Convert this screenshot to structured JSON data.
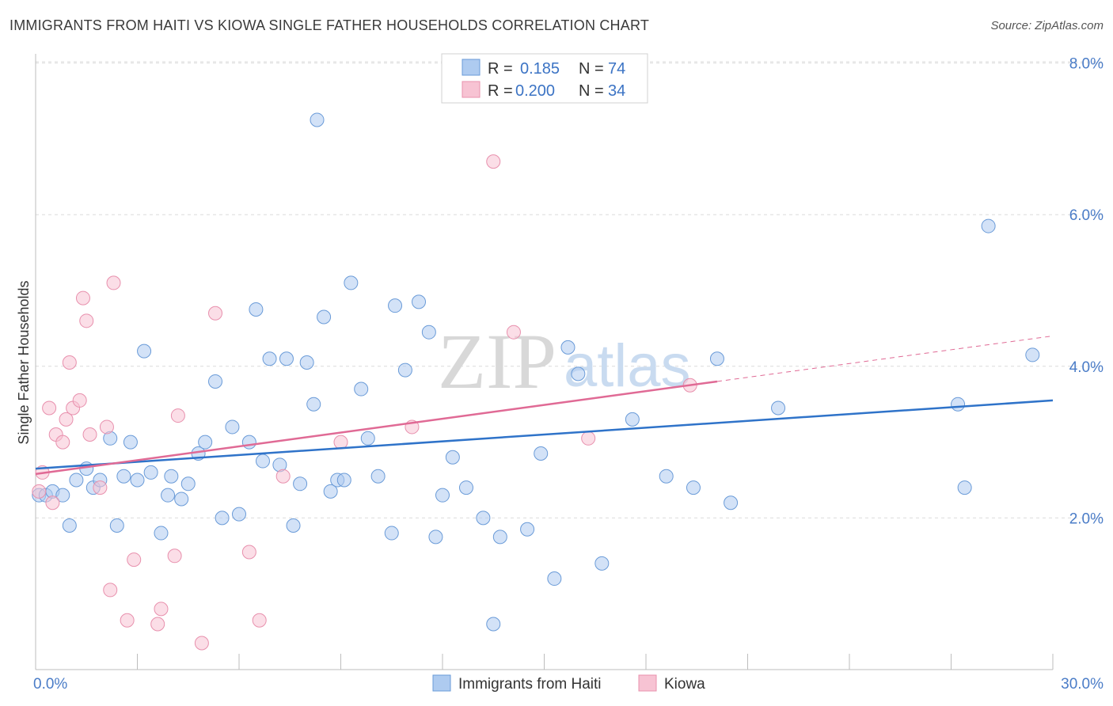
{
  "title": "IMMIGRANTS FROM HAITI VS KIOWA SINGLE FATHER HOUSEHOLDS CORRELATION CHART",
  "source": "Source: ZipAtlas.com",
  "watermark": {
    "zip": "ZIP",
    "atlas": "atlas"
  },
  "colors": {
    "blue_fill": "#aecbf0",
    "blue_stroke": "#6a9bd8",
    "blue_line": "#2f73c9",
    "pink_fill": "#f7c3d3",
    "pink_stroke": "#e890ad",
    "pink_line": "#e06a95",
    "grid": "#dcdcdc",
    "axis_text": "#4a7cc7"
  },
  "legend": {
    "rows": [
      {
        "r_label": "R =",
        "r_value": "0.185",
        "n_label": "N =",
        "n_value": "74",
        "series": "blue"
      },
      {
        "r_label": "R =",
        "r_value": "0.200",
        "n_label": "N =",
        "n_value": "34",
        "series": "pink"
      }
    ]
  },
  "chart_data": {
    "type": "scatter",
    "title": "IMMIGRANTS FROM HAITI VS KIOWA SINGLE FATHER HOUSEHOLDS CORRELATION CHART",
    "xlabel": "",
    "ylabel": "Single Father Households",
    "xlim": [
      0,
      30
    ],
    "ylim": [
      0,
      8.3
    ],
    "x_tick_labels": [
      "0.0%",
      "30.0%"
    ],
    "y_ticks": [
      2,
      4,
      6,
      8
    ],
    "y_tick_labels": [
      "2.0%",
      "4.0%",
      "6.0%",
      "8.0%"
    ],
    "grid": true,
    "series": [
      {
        "name": "Immigrants from Haiti",
        "color": "blue",
        "trend": {
          "x": [
            0,
            30
          ],
          "y": [
            2.65,
            3.55
          ],
          "dashed_to": null
        },
        "points": [
          [
            0.1,
            2.3
          ],
          [
            0.3,
            2.3
          ],
          [
            0.5,
            2.35
          ],
          [
            0.8,
            2.3
          ],
          [
            1.0,
            1.9
          ],
          [
            1.2,
            2.5
          ],
          [
            1.5,
            2.65
          ],
          [
            1.7,
            2.4
          ],
          [
            1.9,
            2.5
          ],
          [
            2.2,
            3.05
          ],
          [
            2.4,
            1.9
          ],
          [
            2.6,
            2.55
          ],
          [
            2.8,
            3.0
          ],
          [
            3.0,
            2.5
          ],
          [
            3.2,
            4.2
          ],
          [
            3.4,
            2.6
          ],
          [
            3.7,
            1.8
          ],
          [
            3.9,
            2.3
          ],
          [
            4.0,
            2.55
          ],
          [
            4.3,
            2.25
          ],
          [
            4.5,
            2.45
          ],
          [
            4.8,
            2.85
          ],
          [
            5.0,
            3.0
          ],
          [
            5.3,
            3.8
          ],
          [
            5.5,
            2.0
          ],
          [
            5.8,
            3.2
          ],
          [
            6.0,
            2.05
          ],
          [
            6.3,
            3.0
          ],
          [
            6.5,
            4.75
          ],
          [
            6.7,
            2.75
          ],
          [
            6.9,
            4.1
          ],
          [
            7.2,
            2.7
          ],
          [
            7.4,
            4.1
          ],
          [
            7.6,
            1.9
          ],
          [
            7.8,
            2.45
          ],
          [
            8.0,
            4.05
          ],
          [
            8.2,
            3.5
          ],
          [
            8.3,
            7.25
          ],
          [
            8.5,
            4.65
          ],
          [
            8.7,
            2.35
          ],
          [
            8.9,
            2.5
          ],
          [
            9.1,
            2.5
          ],
          [
            9.3,
            5.1
          ],
          [
            9.6,
            3.7
          ],
          [
            9.8,
            3.05
          ],
          [
            10.1,
            2.55
          ],
          [
            10.5,
            1.8
          ],
          [
            10.6,
            4.8
          ],
          [
            10.9,
            3.95
          ],
          [
            11.3,
            4.85
          ],
          [
            11.6,
            4.45
          ],
          [
            11.8,
            1.75
          ],
          [
            12.0,
            2.3
          ],
          [
            12.3,
            2.8
          ],
          [
            12.7,
            2.4
          ],
          [
            13.2,
            2.0
          ],
          [
            13.5,
            0.6
          ],
          [
            13.7,
            1.75
          ],
          [
            14.5,
            1.85
          ],
          [
            14.9,
            2.85
          ],
          [
            15.3,
            1.2
          ],
          [
            15.7,
            4.25
          ],
          [
            16.0,
            3.9
          ],
          [
            16.7,
            1.4
          ],
          [
            17.6,
            3.3
          ],
          [
            18.6,
            2.55
          ],
          [
            19.4,
            2.4
          ],
          [
            20.1,
            4.1
          ],
          [
            20.5,
            2.2
          ],
          [
            21.9,
            3.45
          ],
          [
            27.2,
            3.5
          ],
          [
            27.4,
            2.4
          ],
          [
            28.1,
            5.85
          ],
          [
            29.4,
            4.15
          ]
        ]
      },
      {
        "name": "Kiowa",
        "color": "pink",
        "trend": {
          "x": [
            0,
            20.1
          ],
          "y": [
            2.58,
            3.8
          ],
          "dashed_to": {
            "x": 30,
            "y": 4.4
          }
        },
        "points": [
          [
            0.1,
            2.35
          ],
          [
            0.2,
            2.6
          ],
          [
            0.4,
            3.45
          ],
          [
            0.5,
            2.2
          ],
          [
            0.6,
            3.1
          ],
          [
            0.8,
            3.0
          ],
          [
            0.9,
            3.3
          ],
          [
            1.0,
            4.05
          ],
          [
            1.1,
            3.45
          ],
          [
            1.3,
            3.55
          ],
          [
            1.4,
            4.9
          ],
          [
            1.5,
            4.6
          ],
          [
            1.6,
            3.1
          ],
          [
            1.9,
            2.4
          ],
          [
            2.1,
            3.2
          ],
          [
            2.2,
            1.05
          ],
          [
            2.3,
            5.1
          ],
          [
            2.7,
            0.65
          ],
          [
            2.9,
            1.45
          ],
          [
            3.6,
            0.6
          ],
          [
            3.7,
            0.8
          ],
          [
            4.1,
            1.5
          ],
          [
            4.2,
            3.35
          ],
          [
            4.9,
            0.35
          ],
          [
            5.3,
            4.7
          ],
          [
            6.3,
            1.55
          ],
          [
            6.6,
            0.65
          ],
          [
            7.3,
            2.55
          ],
          [
            9.0,
            3.0
          ],
          [
            11.1,
            3.2
          ],
          [
            13.5,
            6.7
          ],
          [
            14.1,
            4.45
          ],
          [
            16.3,
            3.05
          ],
          [
            19.3,
            3.75
          ]
        ]
      }
    ],
    "legend_entries": [
      "Immigrants from Haiti",
      "Kiowa"
    ]
  }
}
